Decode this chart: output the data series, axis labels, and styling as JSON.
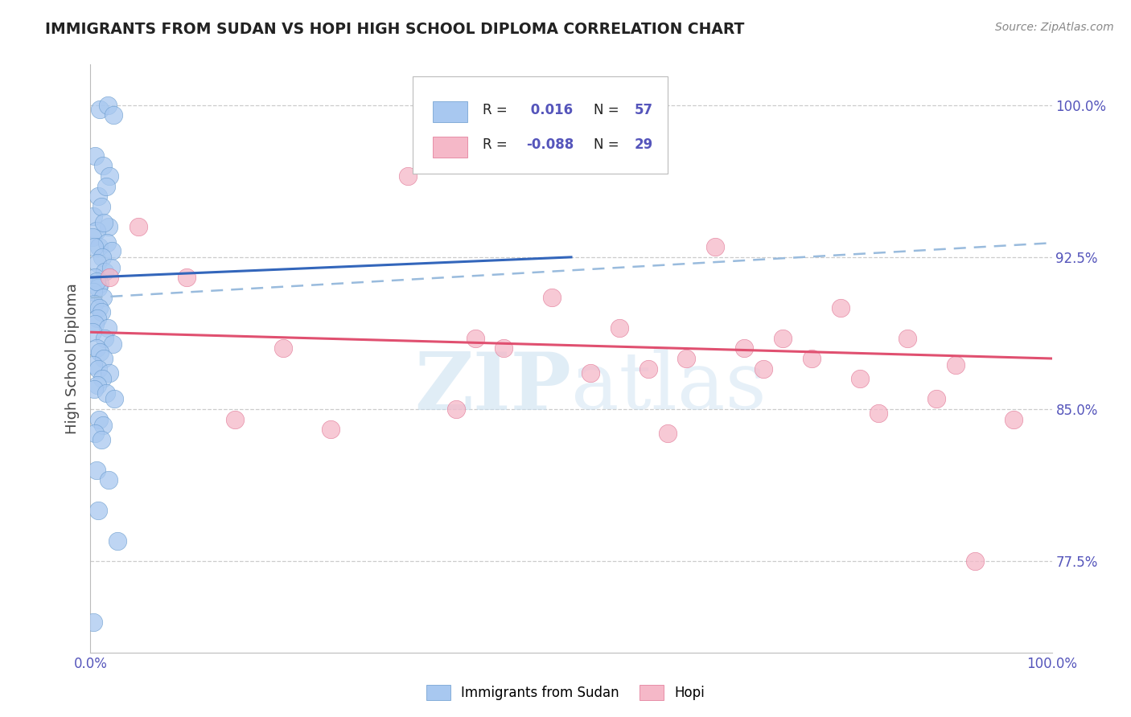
{
  "title": "IMMIGRANTS FROM SUDAN VS HOPI HIGH SCHOOL DIPLOMA CORRELATION CHART",
  "source_text": "Source: ZipAtlas.com",
  "ylabel": "High School Diploma",
  "watermark_zip": "ZIP",
  "watermark_atlas": "atlas",
  "r_blue": 0.016,
  "n_blue": 57,
  "r_pink": -0.088,
  "n_pink": 29,
  "legend_label_blue": "Immigrants from Sudan",
  "legend_label_pink": "Hopi",
  "x_min": 0.0,
  "x_max": 100.0,
  "y_min": 73.0,
  "y_max": 102.0,
  "yticks": [
    77.5,
    85.0,
    92.5,
    100.0
  ],
  "ytick_labels": [
    "77.5%",
    "85.0%",
    "92.5%",
    "100.0%"
  ],
  "blue_color": "#A8C8F0",
  "blue_edge_color": "#6699CC",
  "pink_color": "#F5B8C8",
  "pink_edge_color": "#E07090",
  "blue_line_color": "#3366BB",
  "pink_line_color": "#E05070",
  "blue_dash_color": "#99BBDD",
  "title_color": "#222222",
  "tick_label_color": "#5555BB",
  "grid_color": "#CCCCCC",
  "background_color": "#FFFFFF",
  "blue_scatter_x": [
    1.0,
    1.8,
    2.4,
    0.5,
    1.3,
    2.0,
    0.8,
    1.6,
    0.3,
    1.1,
    1.9,
    0.6,
    1.4,
    0.2,
    0.9,
    1.7,
    2.2,
    0.4,
    1.2,
    0.7,
    1.5,
    2.1,
    0.5,
    1.0,
    0.8,
    0.3,
    0.6,
    1.3,
    0.4,
    0.9,
    1.1,
    0.7,
    0.5,
    1.8,
    0.2,
    1.5,
    2.3,
    0.6,
    1.0,
    1.4,
    0.3,
    0.8,
    2.0,
    1.2,
    0.7,
    0.4,
    1.6,
    2.5,
    0.9,
    1.3,
    0.5,
    1.1,
    0.6,
    1.9,
    0.8,
    2.8,
    0.3
  ],
  "blue_scatter_y": [
    99.8,
    100.0,
    99.5,
    97.5,
    97.0,
    96.5,
    95.5,
    96.0,
    94.5,
    95.0,
    94.0,
    93.8,
    94.2,
    93.5,
    93.0,
    93.2,
    92.8,
    93.0,
    92.5,
    92.2,
    91.8,
    92.0,
    91.5,
    91.2,
    91.0,
    90.8,
    91.3,
    90.5,
    90.2,
    90.0,
    89.8,
    89.5,
    89.2,
    89.0,
    88.8,
    88.5,
    88.2,
    88.0,
    87.8,
    87.5,
    87.2,
    87.0,
    86.8,
    86.5,
    86.2,
    86.0,
    85.8,
    85.5,
    84.5,
    84.2,
    83.8,
    83.5,
    82.0,
    81.5,
    80.0,
    78.5,
    74.5
  ],
  "pink_scatter_x": [
    33.0,
    5.0,
    10.0,
    65.0,
    2.0,
    48.0,
    78.0,
    55.0,
    72.0,
    85.0,
    43.0,
    62.0,
    90.0,
    70.0,
    52.0,
    80.0,
    88.0,
    38.0,
    96.0,
    15.0,
    25.0,
    60.0,
    40.0,
    68.0,
    75.0,
    58.0,
    82.0,
    92.0,
    20.0
  ],
  "pink_scatter_y": [
    96.5,
    94.0,
    91.5,
    93.0,
    91.5,
    90.5,
    90.0,
    89.0,
    88.5,
    88.5,
    88.0,
    87.5,
    87.2,
    87.0,
    86.8,
    86.5,
    85.5,
    85.0,
    84.5,
    84.5,
    84.0,
    83.8,
    88.5,
    88.0,
    87.5,
    87.0,
    84.8,
    77.5,
    88.0
  ],
  "blue_trend_x0": 0.0,
  "blue_trend_y0": 91.5,
  "blue_trend_x1": 50.0,
  "blue_trend_y1": 92.5,
  "pink_trend_x0": 0.0,
  "pink_trend_y0": 88.8,
  "pink_trend_x1": 100.0,
  "pink_trend_y1": 87.5,
  "blue_dash_x0": 0.0,
  "blue_dash_y0": 90.5,
  "blue_dash_x1": 100.0,
  "blue_dash_y1": 93.2
}
